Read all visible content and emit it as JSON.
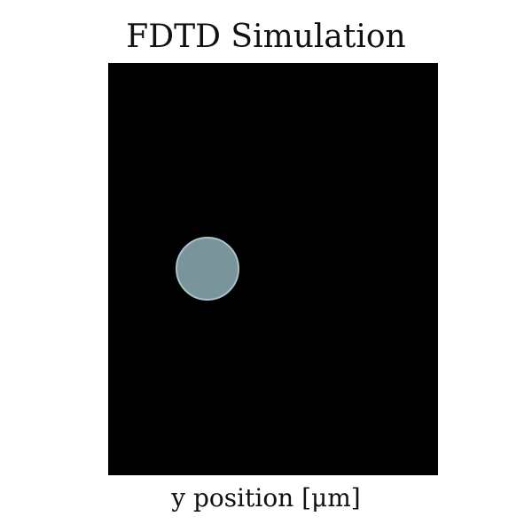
{
  "figure": {
    "title": "FDTD Simulation",
    "xlabel": "y position [μm]"
  },
  "colors": {
    "background": "#000000",
    "circle_fill": "#7a949c",
    "circle_stroke": "#a9c1c9"
  }
}
